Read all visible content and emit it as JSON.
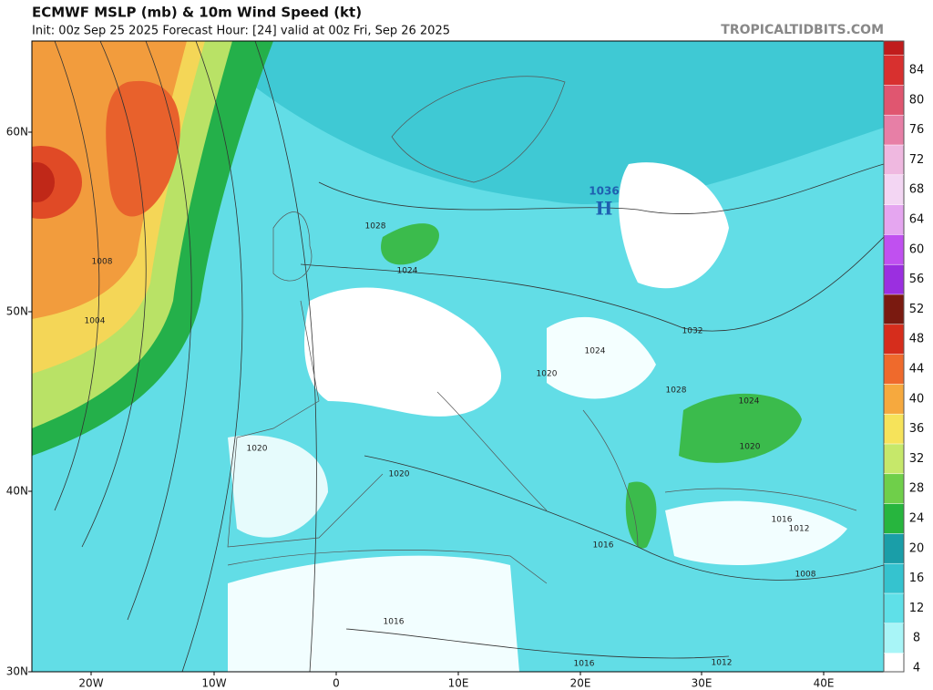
{
  "header": {
    "title": "ECMWF MSLP (mb) & 10m Wind Speed (kt)",
    "subtitle": "Init: 00z Sep 25 2025   Forecast Hour: [24]   valid at 00z Fri, Sep 26 2025",
    "brand": "TROPICALTIDBITS.COM"
  },
  "map": {
    "lat_labels": [
      "60N",
      "50N",
      "40N",
      "30N"
    ],
    "lon_labels": [
      "20W",
      "10W",
      "0",
      "10E",
      "20E",
      "30E",
      "40E"
    ],
    "isobar_labels": [
      "1028",
      "1024",
      "1008",
      "1004",
      "1032",
      "1024",
      "1020",
      "1028",
      "1024",
      "1020",
      "1020",
      "1020",
      "1016",
      "1012",
      "1016",
      "1008",
      "1016",
      "1016",
      "1012"
    ],
    "high": {
      "pressure": "1036",
      "symbol": "H"
    }
  },
  "colorbar": {
    "labels": [
      4,
      8,
      12,
      16,
      20,
      24,
      28,
      32,
      36,
      40,
      44,
      48,
      52,
      56,
      60,
      64,
      68,
      72,
      76,
      80,
      84
    ],
    "colors": [
      "#ffffff",
      "#a8f5f7",
      "#5fe0e8",
      "#35c3cf",
      "#1a9ea8",
      "#27b53e",
      "#6fcf4a",
      "#c6e86a",
      "#f6e35a",
      "#f6a93e",
      "#ef6a2c",
      "#d62d1c",
      "#7a1a10",
      "#9b2fe0",
      "#c050f0",
      "#e5a6f0",
      "#f3d6f3",
      "#efb8e0",
      "#e77fa6",
      "#e05670",
      "#d8302f",
      "#c01c1c"
    ]
  }
}
